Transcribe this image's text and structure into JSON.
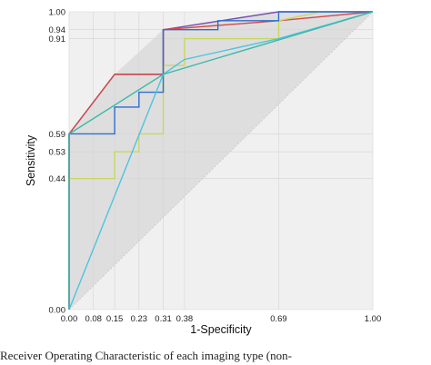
{
  "caption": "Receiver Operating Characteristic of each imaging type (non-",
  "chart_data": {
    "type": "line",
    "title": "",
    "xlabel": "1-Specificity",
    "ylabel": "Sensitivity",
    "xlim": [
      0,
      1
    ],
    "ylim": [
      0,
      1
    ],
    "x_ticks": [
      "0.00",
      "0.08",
      "0.15",
      "0.23",
      "0.31",
      "0.38",
      "0.69",
      "1.00"
    ],
    "y_ticks": [
      "0.00",
      "0.44",
      "0.53",
      "0.59",
      "0.91",
      "0.94",
      "1.00"
    ],
    "grid": true,
    "legend": "none",
    "colors": {
      "background": "#f0f0f0",
      "band": "#dedede",
      "diagonal": "#c8c8c8",
      "grid": "#d4d4d4"
    },
    "series": [
      {
        "color": "#7a4fb0",
        "x": [
          0,
          0,
          0.15,
          0.31,
          0.31,
          0.69,
          1.0
        ],
        "y": [
          0,
          0.59,
          0.79,
          0.79,
          0.94,
          1.0,
          1.0
        ]
      },
      {
        "color": "#d04a4a",
        "x": [
          0,
          0,
          0.15,
          0.31,
          0.31,
          0.69,
          1.0
        ],
        "y": [
          0,
          0.59,
          0.79,
          0.79,
          0.94,
          0.97,
          1.0
        ]
      },
      {
        "color": "#c9d660",
        "x": [
          0,
          0,
          0.08,
          0.15,
          0.15,
          0.23,
          0.23,
          0.31,
          0.31,
          0.38,
          0.38,
          0.69,
          0.69,
          0.83,
          1.0
        ],
        "y": [
          0,
          0.44,
          0.44,
          0.44,
          0.53,
          0.53,
          0.59,
          0.59,
          0.82,
          0.82,
          0.91,
          0.91,
          0.97,
          1.0,
          1.0
        ]
      },
      {
        "color": "#2c6fcf",
        "x": [
          0,
          0,
          0.15,
          0.15,
          0.23,
          0.23,
          0.31,
          0.31,
          0.49,
          0.49,
          0.69,
          0.69,
          1.0
        ],
        "y": [
          0,
          0.59,
          0.59,
          0.68,
          0.68,
          0.73,
          0.73,
          0.94,
          0.94,
          0.97,
          0.97,
          1.0,
          1.0
        ]
      },
      {
        "color": "#4fc3e0",
        "x": [
          0,
          0.31,
          0.38,
          0.69,
          1.0
        ],
        "y": [
          0,
          0.79,
          0.84,
          0.91,
          1.0
        ]
      },
      {
        "color": "#3bb9a6",
        "x": [
          0,
          0,
          0.31,
          1.0
        ],
        "y": [
          0,
          0.59,
          0.79,
          1.0
        ]
      }
    ]
  }
}
